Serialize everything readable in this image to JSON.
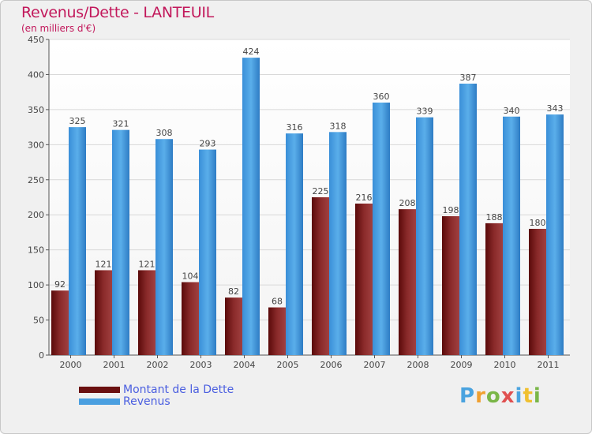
{
  "header": {
    "title": "Revenus/Dette - LANTEUIL",
    "subtitle": "(en milliers d'€)"
  },
  "legend": {
    "items": [
      {
        "label": "Montant de la Dette",
        "color": "#7a1a1a"
      },
      {
        "label": "Revenus",
        "color": "#4a9fe0"
      }
    ]
  },
  "logo": {
    "text": "Proxiti"
  },
  "chart_data": {
    "type": "bar",
    "title": "Revenus/Dette - LANTEUIL",
    "subtitle": "(en milliers d'€)",
    "categories": [
      "2000",
      "2001",
      "2002",
      "2003",
      "2004",
      "2005",
      "2006",
      "2007",
      "2008",
      "2009",
      "2010",
      "2011"
    ],
    "series": [
      {
        "name": "Montant de la Dette",
        "color": "#7a1a1a",
        "values": [
          92,
          121,
          121,
          104,
          82,
          68,
          225,
          216,
          208,
          198,
          188,
          180
        ]
      },
      {
        "name": "Revenus",
        "color": "#4a9fe0",
        "values": [
          325,
          321,
          308,
          293,
          424,
          316,
          318,
          360,
          339,
          387,
          340,
          343
        ]
      }
    ],
    "ylim": [
      0,
      450
    ],
    "yticks": [
      0,
      50,
      100,
      150,
      200,
      250,
      300,
      350,
      400,
      450
    ],
    "grid": true,
    "legend_position": "bottom-left"
  }
}
